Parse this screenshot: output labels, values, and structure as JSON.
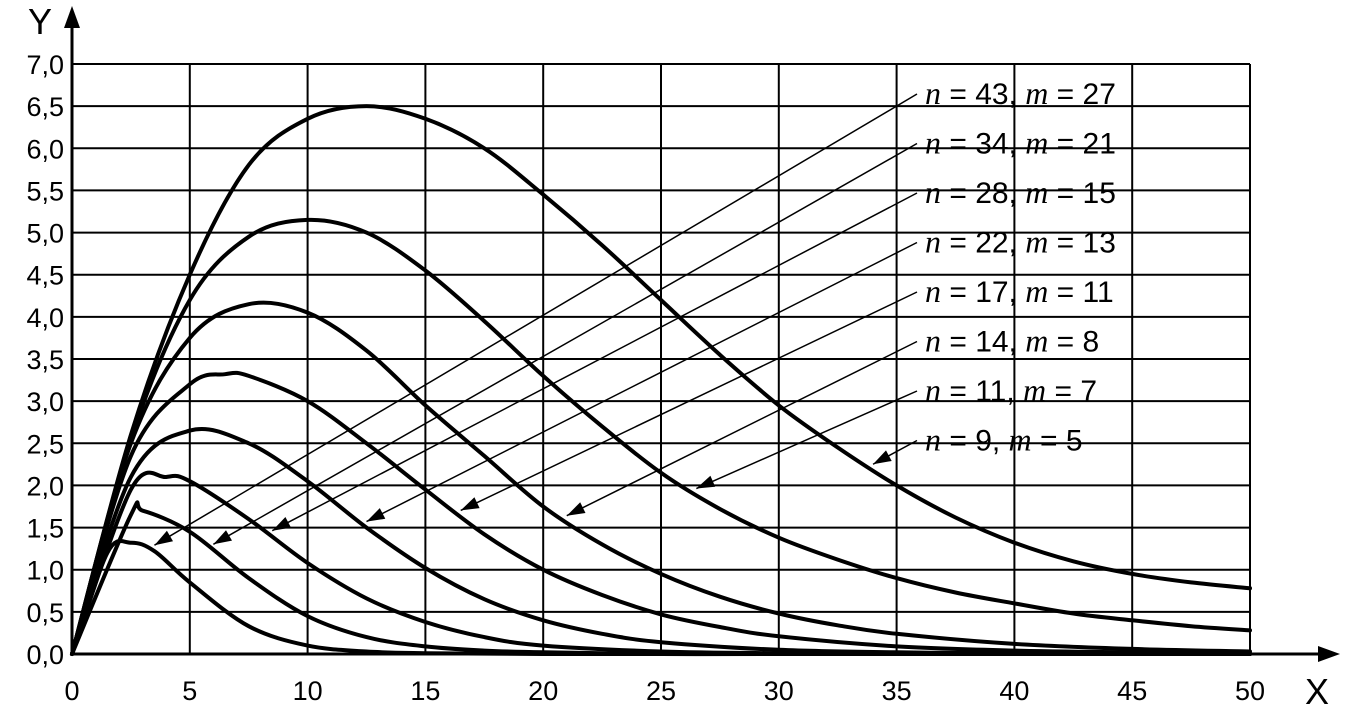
{
  "chart_data": {
    "type": "line",
    "title": "",
    "xlabel": "X",
    "ylabel": "Y",
    "xlim": [
      0,
      50
    ],
    "ylim": [
      0,
      7
    ],
    "grid": true,
    "x_ticks": [
      0,
      5,
      10,
      15,
      20,
      25,
      30,
      35,
      40,
      45,
      50
    ],
    "x_tick_labels": [
      "0",
      "5",
      "10",
      "15",
      "20",
      "25",
      "30",
      "35",
      "40",
      "45",
      "50"
    ],
    "y_ticks": [
      0,
      0.5,
      1,
      1.5,
      2,
      2.5,
      3,
      3.5,
      4,
      4.5,
      5,
      5.5,
      6,
      6.5,
      7
    ],
    "y_tick_labels": [
      "0,0",
      "0,5",
      "1,0",
      "1,5",
      "2,0",
      "2,5",
      "3,0",
      "3,5",
      "4,0",
      "4,5",
      "5,0",
      "5,5",
      "6,0",
      "6,5",
      "7,0"
    ],
    "line_color": "#000000",
    "series": [
      {
        "name": "n = 43, m = 27",
        "n": "43",
        "m": "27",
        "x": [
          0,
          2.5,
          5,
          7.5,
          10,
          12.5,
          15,
          17.5,
          20,
          22.5,
          25,
          27.5,
          30,
          32.5,
          35,
          37.5,
          40,
          42.5,
          45,
          47.5,
          50
        ],
        "y": [
          0,
          2.6,
          4.5,
          5.8,
          6.35,
          6.5,
          6.35,
          6.0,
          5.45,
          4.85,
          4.2,
          3.55,
          2.95,
          2.45,
          2.0,
          1.62,
          1.32,
          1.1,
          0.95,
          0.85,
          0.78
        ]
      },
      {
        "name": "n = 34, m = 21",
        "n": "34",
        "m": "21",
        "x": [
          0,
          2.5,
          5,
          7.5,
          10,
          12.5,
          15,
          17.5,
          20,
          22.5,
          25,
          27.5,
          30,
          32.5,
          35,
          37.5,
          40,
          42.5,
          45,
          47.5,
          50
        ],
        "y": [
          0,
          2.55,
          4.2,
          4.95,
          5.15,
          5.0,
          4.55,
          3.95,
          3.3,
          2.7,
          2.15,
          1.72,
          1.38,
          1.12,
          0.9,
          0.73,
          0.6,
          0.48,
          0.4,
          0.33,
          0.28
        ]
      },
      {
        "name": "n = 28, m = 15",
        "n": "28",
        "m": "15",
        "x": [
          0,
          2.5,
          5,
          7.5,
          10,
          12.5,
          15,
          17.5,
          20,
          22.5,
          25,
          27.5,
          30,
          32.5,
          35,
          40,
          45,
          50
        ],
        "y": [
          0,
          2.5,
          3.75,
          4.15,
          4.05,
          3.6,
          2.95,
          2.35,
          1.75,
          1.3,
          0.95,
          0.68,
          0.48,
          0.34,
          0.24,
          0.12,
          0.06,
          0.03
        ]
      },
      {
        "name": "n = 22, m = 13",
        "n": "22",
        "m": "13",
        "x": [
          0,
          2.5,
          5,
          6.5,
          7.5,
          10,
          12.5,
          15,
          17.5,
          20,
          22.5,
          25,
          27.5,
          30,
          35,
          40,
          45,
          50
        ],
        "y": [
          0,
          2.35,
          3.2,
          3.32,
          3.3,
          3.0,
          2.5,
          1.95,
          1.42,
          1.0,
          0.7,
          0.47,
          0.32,
          0.21,
          0.09,
          0.04,
          0.02,
          0.01
        ]
      },
      {
        "name": "n = 17, m = 11",
        "n": "17",
        "m": "11",
        "x": [
          0,
          2.5,
          5,
          7.5,
          10,
          12.5,
          15,
          17.5,
          20,
          22.5,
          25,
          30,
          35,
          40,
          50
        ],
        "y": [
          0,
          2.1,
          2.65,
          2.5,
          2.05,
          1.5,
          1.02,
          0.65,
          0.4,
          0.24,
          0.14,
          0.05,
          0.02,
          0.01,
          0.0
        ]
      },
      {
        "name": "n = 14, m = 8",
        "n": "14",
        "m": "8",
        "x": [
          0,
          2.5,
          4,
          5,
          7.5,
          10,
          12.5,
          15,
          17.5,
          20,
          25,
          30,
          40,
          50
        ],
        "y": [
          0,
          1.95,
          2.1,
          2.05,
          1.6,
          1.08,
          0.66,
          0.38,
          0.2,
          0.1,
          0.03,
          0.01,
          0.0,
          0.0
        ]
      },
      {
        "name": "n = 11, m = 7",
        "n": "11",
        "m": "7",
        "x": [
          0,
          2.5,
          3,
          5,
          7.5,
          10,
          12.5,
          15,
          17.5,
          20,
          25,
          30,
          40,
          50
        ],
        "y": [
          0,
          1.65,
          1.7,
          1.45,
          0.9,
          0.45,
          0.2,
          0.09,
          0.04,
          0.02,
          0.0,
          0.0,
          0.0,
          0.0
        ]
      },
      {
        "name": "n = 9, m = 5",
        "n": "9",
        "m": "5",
        "x": [
          0,
          1.5,
          2.5,
          3.5,
          5,
          7.5,
          10,
          12.5,
          15,
          20,
          30,
          40,
          50
        ],
        "y": [
          0,
          1.2,
          1.32,
          1.22,
          0.85,
          0.33,
          0.1,
          0.03,
          0.01,
          0.0,
          0.0,
          0.0,
          0.0
        ]
      }
    ]
  }
}
